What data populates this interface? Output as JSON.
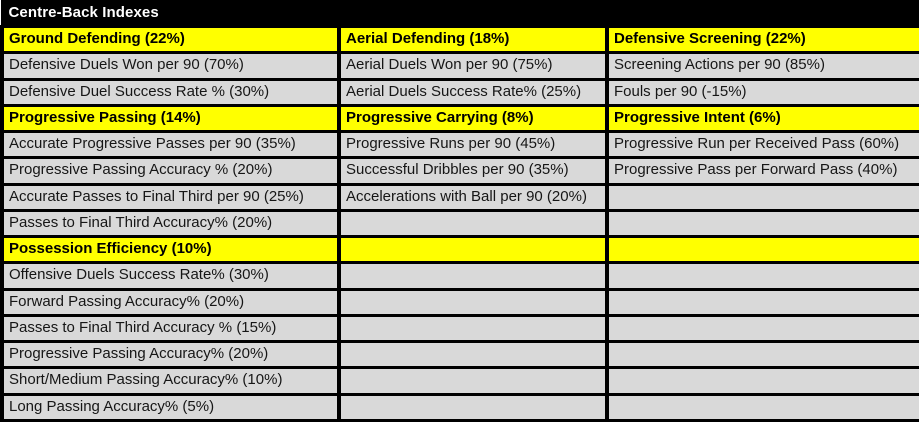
{
  "title": "Centre-Back Indexes",
  "colors": {
    "title_bg": "#000000",
    "title_text": "#ffffff",
    "section_bg": "#ffff00",
    "cell_bg": "#d9d9d9",
    "border": "#000000",
    "cell_text": "#161616"
  },
  "table": {
    "columns": 3,
    "rows": [
      {
        "type": "section",
        "cells": [
          "Ground Defending (22%)",
          "Aerial Defending (18%)",
          "Defensive Screening (22%)"
        ]
      },
      {
        "type": "data",
        "cells": [
          "Defensive Duels Won per 90 (70%)",
          "Aerial Duels Won per 90 (75%)",
          "Screening Actions per 90 (85%)"
        ]
      },
      {
        "type": "data",
        "cells": [
          "Defensive Duel Success Rate % (30%)",
          "Aerial Duels Success Rate% (25%)",
          "Fouls per 90 (-15%)"
        ]
      },
      {
        "type": "section",
        "cells": [
          "Progressive Passing (14%)",
          "Progressive Carrying (8%)",
          "Progressive Intent (6%)"
        ]
      },
      {
        "type": "data",
        "cells": [
          "Accurate Progressive Passes per 90 (35%)",
          "Progressive Runs per 90 (45%)",
          "Progressive Run per Received Pass (60%)"
        ]
      },
      {
        "type": "data",
        "cells": [
          "Progressive Passing Accuracy % (20%)",
          "Successful Dribbles per 90 (35%)",
          "Progressive Pass per Forward Pass (40%)"
        ]
      },
      {
        "type": "data",
        "cells": [
          "Accurate Passes to Final Third per 90 (25%)",
          "Accelerations with Ball per 90 (20%)",
          ""
        ]
      },
      {
        "type": "data",
        "cells": [
          "Passes to Final Third Accuracy% (20%)",
          "",
          ""
        ]
      },
      {
        "type": "section",
        "cells": [
          "Possession Efficiency (10%)",
          "",
          ""
        ]
      },
      {
        "type": "data",
        "cells": [
          "Offensive Duels Success Rate% (30%)",
          "",
          ""
        ]
      },
      {
        "type": "data",
        "cells": [
          "Forward Passing Accuracy% (20%)",
          "",
          ""
        ]
      },
      {
        "type": "data",
        "cells": [
          "Passes to Final Third Accuracy % (15%)",
          "",
          ""
        ]
      },
      {
        "type": "data",
        "cells": [
          "Progressive Passing Accuracy% (20%)",
          "",
          ""
        ]
      },
      {
        "type": "data",
        "cells": [
          "Short/Medium Passing Accuracy% (10%)",
          "",
          ""
        ]
      },
      {
        "type": "data",
        "cells": [
          "Long Passing Accuracy% (5%)",
          "",
          ""
        ]
      }
    ]
  }
}
